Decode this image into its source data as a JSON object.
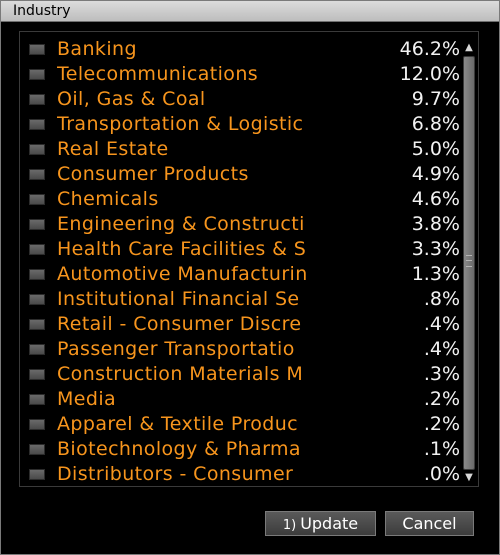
{
  "window": {
    "title": "Industry"
  },
  "industries": [
    {
      "name": "Banking",
      "pct": "46.2%"
    },
    {
      "name": "Telecommunications",
      "pct": "12.0%"
    },
    {
      "name": "Oil, Gas & Coal",
      "pct": "9.7%"
    },
    {
      "name": "Transportation & Logistic",
      "pct": "6.8%"
    },
    {
      "name": "Real Estate",
      "pct": "5.0%"
    },
    {
      "name": "Consumer Products",
      "pct": "4.9%"
    },
    {
      "name": "Chemicals",
      "pct": "4.6%"
    },
    {
      "name": "Engineering & Constructi",
      "pct": "3.8%"
    },
    {
      "name": "Health Care Facilities & S",
      "pct": "3.3%"
    },
    {
      "name": "Automotive Manufacturin",
      "pct": "1.3%"
    },
    {
      "name": "Institutional Financial Se",
      "pct": ".8%"
    },
    {
      "name": "Retail - Consumer Discre",
      "pct": ".4%"
    },
    {
      "name": "Passenger Transportatio",
      "pct": ".4%"
    },
    {
      "name": "Construction Materials M",
      "pct": ".3%"
    },
    {
      "name": "Media",
      "pct": ".2%"
    },
    {
      "name": "Apparel & Textile Produc",
      "pct": ".2%"
    },
    {
      "name": "Biotechnology & Pharma",
      "pct": ".1%"
    },
    {
      "name": "Distributors - Consumer",
      "pct": ".0%"
    }
  ],
  "scrollbar": {
    "up_icon": "▲",
    "down_icon": "▼"
  },
  "buttons": {
    "update_hotkey": "1)",
    "update_label": "Update",
    "cancel_label": "Cancel"
  }
}
